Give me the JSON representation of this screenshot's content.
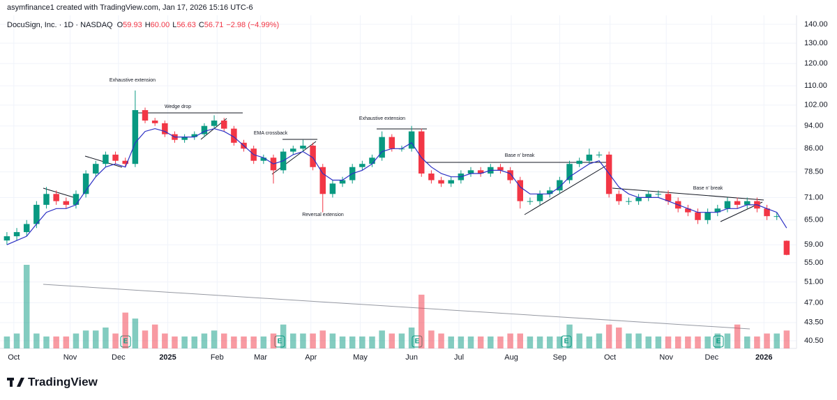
{
  "chart_data": {
    "type": "candlestick",
    "credit": "asymfinance1 created with TradingView.com, Jan 17, 2026 15:16 UTC-6",
    "symbol": "DocuSign, Inc. · 1D · NASDAQ",
    "ohlc": [
      {
        "key": "O",
        "value": "59.93"
      },
      {
        "key": "H",
        "value": "60.00"
      },
      {
        "key": "L",
        "value": "56.63"
      },
      {
        "key": "C",
        "value": "56.71"
      }
    ],
    "change": "−2.98 (−4.99%)",
    "logo": "TradingView",
    "log_scale": true,
    "grid": true,
    "up_color": "#089981",
    "down_color": "#f23645",
    "ema_color": "#2b2fc4",
    "ylim": [
      39.3,
      145
    ],
    "yticks": [
      {
        "value": 140,
        "label": "140.00"
      },
      {
        "value": 130,
        "label": "130.00"
      },
      {
        "value": 120,
        "label": "120.00"
      },
      {
        "value": 110,
        "label": "110.00"
      },
      {
        "value": 102,
        "label": "102.00"
      },
      {
        "value": 94,
        "label": "94.00"
      },
      {
        "value": 86,
        "label": "86.00"
      },
      {
        "value": 78.5,
        "label": "78.50"
      },
      {
        "value": 71,
        "label": "71.00"
      },
      {
        "value": 65,
        "label": "65.00"
      },
      {
        "value": 59,
        "label": "59.00"
      },
      {
        "value": 55,
        "label": "55.00"
      },
      {
        "value": 51,
        "label": "51.00"
      },
      {
        "value": 47,
        "label": "47.00"
      },
      {
        "value": 43.5,
        "label": "43.50"
      },
      {
        "value": 40.5,
        "label": "40.50"
      }
    ],
    "xlim": [
      -0.7,
      80
    ],
    "xticks": [
      {
        "value": 0.7,
        "label": "Oct"
      },
      {
        "value": 6.4,
        "label": "Nov"
      },
      {
        "value": 11.3,
        "label": "Dec"
      },
      {
        "value": 16.3,
        "label": "2025"
      },
      {
        "value": 21.3,
        "label": "Feb"
      },
      {
        "value": 25.7,
        "label": "Mar"
      },
      {
        "value": 30.8,
        "label": "Apr"
      },
      {
        "value": 35.8,
        "label": "May"
      },
      {
        "value": 41,
        "label": "Jun"
      },
      {
        "value": 45.8,
        "label": "Jul"
      },
      {
        "value": 51.1,
        "label": "Aug"
      },
      {
        "value": 56,
        "label": "Sep"
      },
      {
        "value": 61.1,
        "label": "Oct"
      },
      {
        "value": 66.8,
        "label": "Nov"
      },
      {
        "value": 71.4,
        "label": "Dec"
      },
      {
        "value": 76.7,
        "label": "2026"
      }
    ],
    "volume_lim": [
      0,
      14
    ],
    "open": [
      60,
      61,
      62,
      64,
      69,
      72,
      70,
      69,
      72,
      78,
      81,
      84,
      82,
      81,
      100,
      96,
      95,
      91,
      89,
      90,
      91,
      94,
      96,
      93,
      88,
      86,
      82,
      83,
      79,
      85,
      86,
      87,
      80,
      72,
      75,
      76,
      80,
      81,
      83,
      90,
      86,
      86,
      92,
      78,
      76,
      75,
      76,
      78,
      79,
      78,
      80,
      79,
      76,
      70,
      70,
      72,
      73,
      76,
      81,
      82,
      84,
      84,
      72,
      70,
      70,
      71,
      72,
      72,
      70,
      68,
      67,
      65,
      67,
      68,
      70,
      69,
      70,
      68,
      66,
      59.93
    ],
    "high": [
      62,
      63,
      65,
      70,
      74,
      73,
      71,
      73,
      79,
      82,
      85,
      85,
      83,
      108,
      101,
      97,
      96,
      92,
      91,
      92,
      95,
      98,
      97,
      94,
      89,
      87,
      84,
      84,
      86,
      87,
      89,
      88,
      81,
      76,
      77,
      81,
      82,
      84,
      92,
      91,
      87,
      94,
      93,
      79,
      77,
      77,
      79,
      80,
      80,
      81,
      81,
      80,
      77,
      71,
      73,
      74,
      77,
      82,
      83,
      86,
      85,
      85,
      73,
      71,
      72,
      73,
      73,
      73,
      71,
      69,
      68,
      68,
      69,
      71,
      71,
      71,
      71,
      69,
      67,
      60
    ],
    "low": [
      59,
      60,
      61,
      63,
      68,
      69,
      68,
      68,
      71,
      77,
      80,
      81,
      80,
      80,
      95,
      94,
      90,
      88,
      88,
      89,
      90,
      93,
      92,
      87,
      85,
      81,
      81,
      75,
      78,
      84,
      85,
      79,
      67,
      71,
      74,
      75,
      79,
      80,
      82,
      85,
      85,
      85,
      77,
      75,
      74,
      74,
      75,
      77,
      77,
      77,
      78,
      75,
      68,
      69,
      69,
      71,
      72,
      75,
      80,
      81,
      83,
      71,
      69,
      69,
      69,
      70,
      71,
      69,
      67,
      66,
      64,
      64,
      66,
      67,
      68,
      68,
      67,
      65,
      65,
      56.63
    ],
    "close": [
      61,
      62,
      64,
      69,
      72,
      70,
      69,
      72,
      78,
      81,
      84,
      82,
      81,
      100,
      96,
      95,
      91,
      89,
      90,
      91,
      94,
      96,
      93,
      88,
      86,
      82,
      83,
      79,
      85,
      86,
      87,
      80,
      72,
      75,
      76,
      80,
      81,
      83,
      90,
      86,
      86,
      92,
      78,
      76,
      75,
      76,
      78,
      79,
      78,
      80,
      79,
      76,
      70,
      70,
      72,
      73,
      76,
      81,
      82,
      84,
      84,
      72,
      70,
      70,
      71,
      72,
      72,
      70,
      68,
      67,
      65,
      67,
      68,
      70,
      69,
      70,
      68,
      66,
      66,
      56.71
    ],
    "volume": [
      2,
      2.5,
      14,
      2.5,
      2,
      2,
      2,
      2.5,
      3,
      3,
      3.5,
      2.5,
      6,
      5,
      3,
      4,
      2.5,
      2,
      2,
      2,
      2.5,
      3,
      2.5,
      2,
      2,
      2,
      2,
      2.5,
      4,
      2.5,
      2.5,
      2.5,
      3,
      2.5,
      2,
      2,
      2,
      2,
      3,
      2.5,
      2.5,
      3.5,
      9,
      3,
      2.5,
      2,
      2,
      2,
      2,
      2,
      2,
      2.5,
      2.5,
      2,
      2,
      2,
      2,
      4,
      2.5,
      2,
      2.5,
      4,
      3.5,
      2.5,
      2.5,
      2,
      2,
      2,
      2,
      2,
      2,
      2,
      2.5,
      2.5,
      4,
      2,
      2,
      2.5,
      2.5,
      3
    ],
    "ema": [
      59,
      60,
      61,
      64,
      67,
      68,
      68,
      69,
      73,
      77,
      80,
      81,
      80,
      88,
      92,
      93,
      92,
      90,
      90,
      90,
      92,
      93,
      92,
      90,
      87,
      84,
      83,
      81,
      82,
      84,
      85,
      83,
      78,
      76,
      76,
      78,
      79,
      81,
      85,
      86,
      86,
      88,
      83,
      80,
      78,
      77,
      77,
      78,
      78,
      79,
      79,
      78,
      74,
      72,
      72,
      72,
      74,
      77,
      79,
      81,
      82,
      78,
      74,
      72,
      71,
      71,
      71,
      70,
      69,
      68,
      67,
      67,
      67,
      68,
      68,
      69,
      69,
      68,
      67,
      63
    ],
    "annotations": [
      "Exhaustive extension",
      "Wedge drop",
      "EMA crossback",
      "Exhaustive extension",
      "Reversal extension",
      "Base n' break",
      "Base n' break"
    ]
  }
}
